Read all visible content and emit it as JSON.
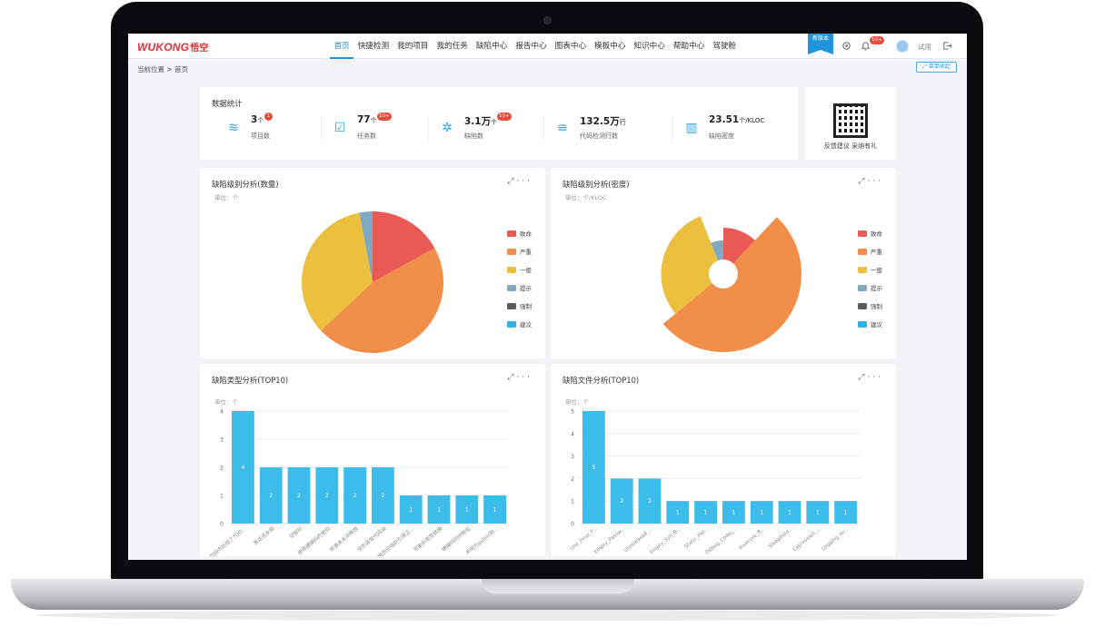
{
  "app": {
    "logo_text": "WUKONG",
    "logo_cn": "悟空"
  },
  "nav": {
    "items": [
      "首页",
      "快捷检测",
      "我的项目",
      "我的任务",
      "缺陷中心",
      "报告中心",
      "图表中心",
      "模板中心",
      "知识中心",
      "帮助中心",
      "驾驶舱"
    ],
    "active_index": 0
  },
  "topbar": {
    "new_version": "新版本",
    "notification_badge": "10+",
    "username": "试用"
  },
  "breadcrumb": "当前位置 > 首页",
  "collapse_menu": "菜单收起",
  "stats": {
    "title": "数据统计",
    "items": [
      {
        "value": "3",
        "unit": "个",
        "label": "项目数",
        "badge": "1"
      },
      {
        "value": "77",
        "unit": "个",
        "label": "任务数",
        "badge": "10+"
      },
      {
        "value": "3.1万",
        "unit": "个",
        "label": "缺陷数",
        "badge": "10+"
      },
      {
        "value": "132.5万",
        "unit": "行",
        "label": "代码检测行数",
        "badge": ""
      },
      {
        "value": "23.51",
        "unit": "个/KLOC",
        "label": "缺陷密度",
        "badge": ""
      }
    ]
  },
  "feedback": {
    "text": "反馈建议 采纳有礼"
  },
  "legend_items": [
    {
      "name": "致命",
      "color": "#e95a55"
    },
    {
      "name": "严重",
      "color": "#f08e4a"
    },
    {
      "name": "一般",
      "color": "#ecc03e"
    },
    {
      "name": "提示",
      "color": "#7fa8c1"
    },
    {
      "name": "强制",
      "color": "#5c5c5c"
    },
    {
      "name": "建议",
      "color": "#2eb0e4"
    }
  ],
  "charts": {
    "pie_count": {
      "title": "缺陷级别分析(数量)",
      "unit": "单位：个"
    },
    "pie_density": {
      "title": "缺陷级别分析(密度)",
      "unit": "单位：个/KLOC"
    },
    "bar_types": {
      "title": "缺陷类型分析(TOP10)",
      "unit": "单位：个"
    },
    "bar_files": {
      "title": "缺陷文件分析(TOP10)",
      "unit": "单位：个"
    }
  },
  "chart_data": [
    {
      "type": "pie",
      "title": "缺陷级别分析(数量)",
      "slices": [
        {
          "name": "致命",
          "value": 17,
          "color": "#e95a55"
        },
        {
          "name": "严重",
          "value": 46,
          "color": "#f08e4a"
        },
        {
          "name": "一般",
          "value": 34,
          "color": "#ecc03e"
        },
        {
          "name": "提示",
          "value": 3,
          "color": "#7fa8c1"
        }
      ],
      "legend": "right"
    },
    {
      "type": "pie",
      "title": "缺陷级别分析(密度)",
      "subtype": "rose",
      "slices": [
        {
          "name": "致命",
          "value": 12,
          "color": "#e95a55",
          "radius_rel": 0.5
        },
        {
          "name": "严重",
          "value": 52,
          "color": "#f08e4a",
          "radius_rel": 1.0
        },
        {
          "name": "一般",
          "value": 30,
          "color": "#ecc03e",
          "radius_rel": 0.75
        },
        {
          "name": "提示",
          "value": 6,
          "color": "#7fa8c1",
          "radius_rel": 0.3
        }
      ],
      "legend": "right"
    },
    {
      "type": "bar",
      "title": "缺陷类型分析(TOP10)",
      "categories": [
        "在代码中出现了TOD...",
        "表达式永假",
        "空指针",
        "使用硬编码的密码",
        "资源未关闭释放",
        "空的异常代码块",
        "可能的空指针引用正...",
        "可能的类型转换",
        "硬编码的IP地址",
        "声明为public的..."
      ],
      "values": [
        4,
        2,
        2,
        2,
        2,
        2,
        1,
        1,
        1,
        1
      ],
      "ylim": [
        0,
        4
      ],
      "yticks": [
        0,
        1,
        2,
        3,
        4
      ],
      "ylabel": "",
      "color": "#3bbce9"
    },
    {
      "type": "bar",
      "title": "缺陷文件分析(TOP10)",
      "categories": [
        "Use_Final_F...",
        "Empty_Passw...",
        "Unreleased_...",
        "Empty_Syn_B...",
        "Static_Fiel...",
        "Debug_Code_...",
        "Insecure_R...",
        "Sleepfield...",
        "Expression_...",
        "Logging_ou..."
      ],
      "values": [
        5,
        2,
        2,
        1,
        1,
        1,
        1,
        1,
        1,
        1
      ],
      "ylim": [
        0,
        5
      ],
      "yticks": [
        0,
        1,
        2,
        3,
        4,
        5
      ],
      "ylabel": "",
      "color": "#3bbce9"
    }
  ]
}
